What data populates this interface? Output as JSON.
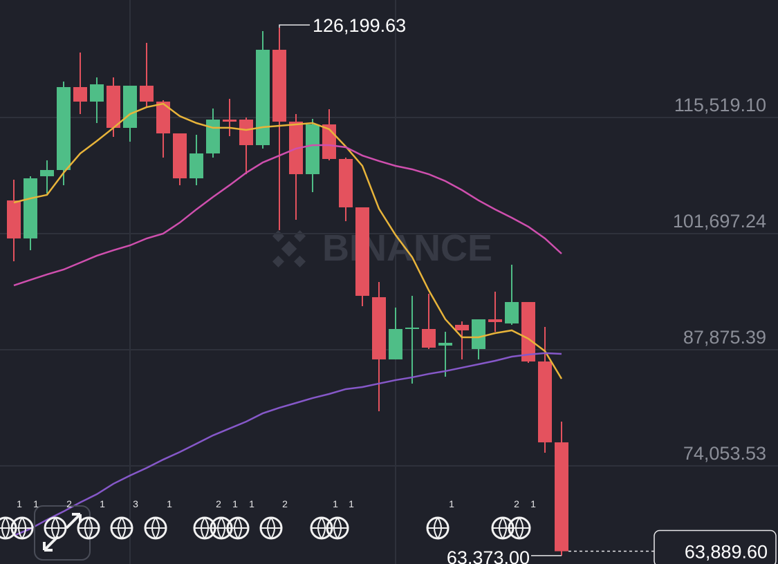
{
  "chart_data": {
    "type": "candlestick",
    "watermark": "BINANCE",
    "ylim": [
      62371,
      129505
    ],
    "yticks": [
      {
        "value": 115519.1,
        "label": "115,519.10"
      },
      {
        "value": 101697.24,
        "label": "101,697.24"
      },
      {
        "value": 87875.39,
        "label": "87,875.39"
      },
      {
        "value": 74053.53,
        "label": "74,053.53"
      }
    ],
    "grid": true,
    "up_color": "#4fbe87",
    "down_color": "#e4525e",
    "open": [
      105647,
      101122,
      108526,
      109267,
      119139,
      117411,
      119304,
      114285,
      119304,
      117411,
      113627,
      108279,
      111241,
      115272,
      115272,
      112228,
      123582,
      115025,
      108773,
      114696,
      110583,
      104824,
      94129,
      86725,
      90509,
      90344,
      88370,
      90838,
      87959,
      91496,
      91003,
      93553,
      86478,
      76852
    ],
    "high": [
      108115,
      108526,
      110418,
      119797,
      123252,
      120291,
      120291,
      119304,
      124404,
      117576,
      113627,
      113462,
      116589,
      117740,
      115519,
      125803,
      126199.63,
      115930,
      115355,
      116506,
      110747,
      104824,
      95939,
      92895,
      94293,
      94540,
      90015,
      91249,
      91496,
      94787,
      97996,
      93553,
      90591,
      79320
    ],
    "low": [
      98407,
      99723,
      106469,
      107457,
      115930,
      114861,
      113216,
      112640,
      116753,
      110747,
      107457,
      107457,
      110747,
      113298,
      108773,
      111815,
      102109,
      103343,
      106634,
      110418,
      103179,
      93059,
      80554,
      86725,
      83845,
      87959,
      84668,
      86725,
      86725,
      90015,
      90838,
      86313,
      75618,
      63373.0
    ],
    "close": [
      101122,
      108279,
      109267,
      119139,
      117411,
      119468,
      114285,
      119304,
      117411,
      113627,
      108279,
      111241,
      115272,
      115025,
      112228,
      123582,
      115025,
      108773,
      114696,
      110583,
      104824,
      94293,
      86725,
      90344,
      90509,
      88123,
      88699,
      90180,
      91496,
      91167,
      93553,
      86478,
      76852,
      63889.6
    ],
    "lines": [
      {
        "color": "#e8b43a",
        "values": [
          105400,
          105890,
          106310,
          108940,
          111240,
          112720,
          114290,
          115930,
          116750,
          117160,
          115680,
          114860,
          114290,
          114290,
          114040,
          114370,
          114530,
          114700,
          114860,
          114120,
          112060,
          109760,
          104660,
          101530,
          98900,
          94950,
          91500,
          89360,
          89360,
          89850,
          90180,
          89190,
          87710,
          84420
        ]
      },
      {
        "color": "#cf4fae",
        "values": [
          95530,
          96190,
          96840,
          97420,
          98240,
          99070,
          99720,
          100300,
          101120,
          101700,
          103010,
          104580,
          106060,
          107460,
          108940,
          110170,
          110990,
          111820,
          112230,
          112230,
          111980,
          110990,
          110340,
          109760,
          109350,
          108770,
          107950,
          106880,
          105650,
          104580,
          103590,
          102520,
          101120,
          99310
        ]
      },
      {
        "color": "#8658c9",
        "values": [
          65750,
          66570,
          67640,
          68630,
          69700,
          70680,
          71920,
          72900,
          73810,
          74800,
          75700,
          76690,
          77680,
          78500,
          79320,
          80310,
          80970,
          81540,
          82120,
          82610,
          83190,
          83430,
          83850,
          84260,
          84590,
          85000,
          85330,
          85740,
          86150,
          86560,
          87050,
          87300,
          87470,
          87380
        ]
      }
    ],
    "high_label": {
      "value": 126199.63,
      "label": "126,199.63"
    },
    "low_label": {
      "value": 63373.0,
      "label": "63,373.00"
    },
    "last_price": {
      "value": 63889.6,
      "label": "63,889.60"
    },
    "events": [
      "1",
      "1",
      "2",
      "1",
      "3",
      "1",
      "2",
      "1",
      "1",
      "2",
      "1",
      "1",
      "1",
      "2",
      "1"
    ]
  }
}
